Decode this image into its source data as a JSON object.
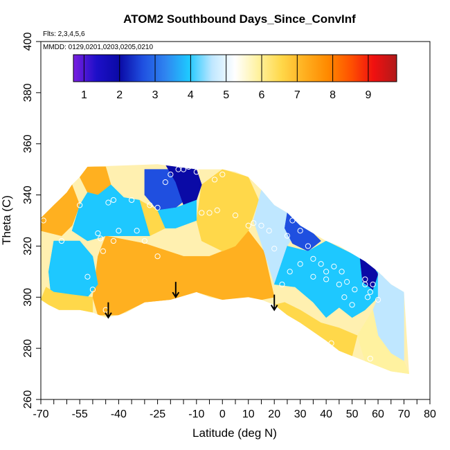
{
  "chart_data": {
    "type": "heatmap",
    "title": "ATOM2 Southbound Days_Since_ConvInf",
    "subtitle_flights": "Flts: 2,3,4,5,6",
    "subtitle_dates": "MMDD: 0129,0201,0203,0205,0210",
    "xlabel": "Latitude (deg N)",
    "ylabel": "Theta (C)",
    "xlim": [
      -70,
      80
    ],
    "ylim": [
      260,
      400
    ],
    "x_tick_labels": [
      "-70",
      "-55",
      "-40",
      "-25",
      "-10",
      "0",
      "10",
      "20",
      "30",
      "40",
      "50",
      "60",
      "70",
      "80"
    ],
    "x_tick_values": [
      -70,
      -55,
      -40,
      -25,
      -10,
      0,
      10,
      20,
      30,
      40,
      50,
      60,
      70,
      80
    ],
    "x_minor_ticks": [
      -65,
      -60,
      -50,
      -45,
      -35,
      -30,
      -20,
      -15,
      -5,
      5,
      15,
      25,
      35,
      45,
      55,
      65,
      75
    ],
    "y_tick_labels": [
      "260",
      "280",
      "300",
      "320",
      "340",
      "360",
      "380",
      "400"
    ],
    "y_tick_values": [
      260,
      280,
      300,
      320,
      340,
      360,
      380,
      400
    ],
    "colorbar": {
      "ticks": [
        "1",
        "2",
        "3",
        "4",
        "5",
        "6",
        "7",
        "8",
        "9"
      ],
      "tick_values": [
        1,
        2,
        3,
        4,
        5,
        6,
        7,
        8,
        9
      ],
      "range": [
        0.7,
        9.8
      ],
      "colors": [
        "#7a1fe0",
        "#1d0fc8",
        "#0a0aa6",
        "#1f4fe0",
        "#2f86f0",
        "#1ec8ff",
        "#bfe7ff",
        "#ffffff",
        "#fff2a0",
        "#ffd84a",
        "#ffb020",
        "#ff8a00",
        "#ff5200",
        "#f01010",
        "#b01a1a"
      ]
    },
    "envelope": {
      "top": [
        [
          -70,
          331
        ],
        [
          -67,
          334
        ],
        [
          -65,
          336
        ],
        [
          -62,
          339
        ],
        [
          -60,
          341
        ],
        [
          -58,
          344
        ],
        [
          -55,
          347
        ],
        [
          -52,
          351
        ],
        [
          -25,
          352
        ],
        [
          -10,
          350
        ],
        [
          0,
          350
        ],
        [
          5,
          349
        ],
        [
          10,
          347
        ],
        [
          15,
          342
        ],
        [
          20,
          336
        ],
        [
          25,
          333
        ],
        [
          30,
          328
        ],
        [
          35,
          325
        ],
        [
          40,
          322
        ],
        [
          45,
          320
        ],
        [
          50,
          317
        ],
        [
          55,
          314
        ],
        [
          60,
          310
        ],
        [
          65,
          305
        ],
        [
          70,
          302
        ]
      ],
      "bottom": [
        [
          72,
          270
        ],
        [
          65,
          271
        ],
        [
          60,
          273
        ],
        [
          55,
          275
        ],
        [
          50,
          277
        ],
        [
          45,
          279
        ],
        [
          40,
          283
        ],
        [
          30,
          290
        ],
        [
          25,
          293
        ],
        [
          20,
          297
        ],
        [
          15,
          299
        ],
        [
          10,
          300
        ],
        [
          0,
          299
        ],
        [
          -5,
          300
        ],
        [
          -10,
          302
        ],
        [
          -20,
          299
        ],
        [
          -30,
          298
        ],
        [
          -37,
          294
        ],
        [
          -40,
          293
        ],
        [
          -45,
          292
        ],
        [
          -50,
          294
        ],
        [
          -55,
          295
        ],
        [
          -63,
          295
        ],
        [
          -67,
          297
        ],
        [
          -70,
          299
        ]
      ]
    },
    "regions": [
      {
        "value": 7.2,
        "polygon": [
          [
            -45,
            324
          ],
          [
            -30,
            321
          ],
          [
            -15,
            316
          ],
          [
            -5,
            316
          ],
          [
            5,
            320
          ],
          [
            10,
            326
          ],
          [
            16,
            318
          ],
          [
            20,
            300
          ],
          [
            15,
            299
          ],
          [
            0,
            299
          ],
          [
            -10,
            302
          ],
          [
            -20,
            299
          ],
          [
            -30,
            298
          ],
          [
            -40,
            293
          ],
          [
            -48,
            293
          ],
          [
            -50,
            300
          ],
          [
            -48,
            316
          ]
        ]
      },
      {
        "value": 6.8,
        "polygon": [
          [
            -8,
            344
          ],
          [
            0,
            350
          ],
          [
            10,
            347
          ],
          [
            14,
            338
          ],
          [
            10,
            326
          ],
          [
            5,
            320
          ],
          [
            0,
            318
          ],
          [
            -8,
            322
          ],
          [
            -10,
            330
          ]
        ]
      },
      {
        "value": 6.9,
        "polygon": [
          [
            -55,
            347
          ],
          [
            -52,
            351
          ],
          [
            -45,
            351
          ],
          [
            -43,
            344
          ],
          [
            -48,
            340
          ],
          [
            -52,
            341
          ]
        ]
      },
      {
        "value": 7.3,
        "polygon": [
          [
            -70,
            331
          ],
          [
            -65,
            336
          ],
          [
            -60,
            341
          ],
          [
            -58,
            344
          ],
          [
            -55,
            336
          ],
          [
            -58,
            328
          ],
          [
            -62,
            324
          ],
          [
            -66,
            325
          ],
          [
            -70,
            326
          ]
        ]
      },
      {
        "value": 6.8,
        "polygon": [
          [
            -32,
            338
          ],
          [
            -25,
            334
          ],
          [
            -22,
            327
          ],
          [
            -28,
            324
          ],
          [
            -33,
            328
          ]
        ]
      },
      {
        "value": 3.8,
        "polygon": [
          [
            -43,
            344
          ],
          [
            -38,
            339
          ],
          [
            -32,
            338
          ],
          [
            -28,
            324
          ],
          [
            -45,
            324
          ],
          [
            -52,
            322
          ],
          [
            -58,
            326
          ],
          [
            -55,
            336
          ],
          [
            -52,
            341
          ],
          [
            -48,
            340
          ]
        ]
      },
      {
        "value": 2.6,
        "polygon": [
          [
            -30,
            350
          ],
          [
            -20,
            350
          ],
          [
            -15,
            348
          ],
          [
            -12,
            340
          ],
          [
            -18,
            335
          ],
          [
            -25,
            334
          ],
          [
            -30,
            340
          ]
        ]
      },
      {
        "value": 2.0,
        "polygon": [
          [
            -22,
            352
          ],
          [
            -10,
            350
          ],
          [
            -8,
            344
          ],
          [
            -10,
            338
          ],
          [
            -15,
            336
          ],
          [
            -18,
            345
          ]
        ]
      },
      {
        "value": 4.2,
        "polygon": [
          [
            -25,
            334
          ],
          [
            -18,
            335
          ],
          [
            -10,
            338
          ],
          [
            -10,
            330
          ],
          [
            -18,
            327
          ],
          [
            -22,
            327
          ]
        ]
      },
      {
        "value": 4.0,
        "polygon": [
          [
            -65,
            322
          ],
          [
            -55,
            322
          ],
          [
            -50,
            316
          ],
          [
            -48,
            305
          ],
          [
            -52,
            300
          ],
          [
            -60,
            298
          ],
          [
            -66,
            300
          ],
          [
            -67,
            310
          ]
        ]
      },
      {
        "value": 6.3,
        "polygon": [
          [
            -70,
            299
          ],
          [
            -67,
            297
          ],
          [
            -63,
            295
          ],
          [
            -55,
            295
          ],
          [
            -50,
            294
          ],
          [
            -50,
            300
          ],
          [
            -58,
            301
          ],
          [
            -65,
            302
          ],
          [
            -68,
            304
          ]
        ]
      },
      {
        "value": 4.5,
        "polygon": [
          [
            15,
            342
          ],
          [
            20,
            336
          ],
          [
            25,
            333
          ],
          [
            30,
            328
          ],
          [
            25,
            320
          ],
          [
            20,
            305
          ],
          [
            16,
            318
          ],
          [
            12,
            330
          ]
        ]
      },
      {
        "value": 2.5,
        "polygon": [
          [
            25,
            333
          ],
          [
            30,
            328
          ],
          [
            35,
            325
          ],
          [
            38,
            322
          ],
          [
            33,
            318
          ],
          [
            27,
            321
          ],
          [
            24,
            327
          ]
        ]
      },
      {
        "value": 3.8,
        "polygon": [
          [
            20,
            305
          ],
          [
            25,
            320
          ],
          [
            33,
            318
          ],
          [
            40,
            322
          ],
          [
            50,
            317
          ],
          [
            55,
            314
          ],
          [
            62,
            308
          ],
          [
            60,
            300
          ],
          [
            55,
            295
          ],
          [
            50,
            292
          ],
          [
            45,
            296
          ],
          [
            40,
            292
          ],
          [
            35,
            298
          ],
          [
            28,
            304
          ]
        ]
      },
      {
        "value": 2.3,
        "polygon": [
          [
            53,
            316
          ],
          [
            57,
            314
          ],
          [
            60,
            309
          ],
          [
            58,
            303
          ],
          [
            54,
            306
          ]
        ]
      },
      {
        "value": 4.6,
        "polygon": [
          [
            60,
            310
          ],
          [
            65,
            305
          ],
          [
            70,
            302
          ],
          [
            70,
            275
          ],
          [
            65,
            278
          ],
          [
            60,
            285
          ],
          [
            58,
            295
          ],
          [
            60,
            300
          ]
        ]
      },
      {
        "value": 5.6,
        "polygon": [
          [
            58,
            295
          ],
          [
            60,
            285
          ],
          [
            65,
            278
          ],
          [
            70,
            275
          ],
          [
            72,
            270
          ],
          [
            65,
            271
          ],
          [
            60,
            273
          ],
          [
            55,
            275
          ],
          [
            52,
            285
          ]
        ]
      },
      {
        "value": 6.6,
        "polygon": [
          [
            20,
            297
          ],
          [
            25,
            293
          ],
          [
            30,
            290
          ],
          [
            40,
            283
          ],
          [
            45,
            279
          ],
          [
            50,
            277
          ],
          [
            52,
            285
          ],
          [
            45,
            288
          ],
          [
            38,
            290
          ],
          [
            30,
            295
          ],
          [
            24,
            298
          ]
        ]
      }
    ],
    "points": [
      [
        -69,
        330
      ],
      [
        -62,
        322
      ],
      [
        -55,
        336
      ],
      [
        -52,
        308
      ],
      [
        -50,
        303
      ],
      [
        -48,
        325
      ],
      [
        -47,
        323
      ],
      [
        -46,
        318
      ],
      [
        -44,
        337
      ],
      [
        -42,
        338
      ],
      [
        -42,
        322
      ],
      [
        -40,
        326
      ],
      [
        -35,
        338
      ],
      [
        -33,
        326
      ],
      [
        -30,
        322
      ],
      [
        -28,
        336
      ],
      [
        -25,
        335
      ],
      [
        -22,
        345
      ],
      [
        -20,
        348
      ],
      [
        -17,
        350
      ],
      [
        -15,
        350
      ],
      [
        -13,
        351
      ],
      [
        -10,
        349
      ],
      [
        -8,
        333
      ],
      [
        -5,
        333
      ],
      [
        -3,
        346
      ],
      [
        0,
        348
      ],
      [
        -2,
        334
      ],
      [
        5,
        332
      ],
      [
        10,
        328
      ],
      [
        12,
        329
      ],
      [
        15,
        328
      ],
      [
        18,
        326
      ],
      [
        20,
        319
      ],
      [
        25,
        324
      ],
      [
        27,
        330
      ],
      [
        30,
        326
      ],
      [
        33,
        320
      ],
      [
        35,
        315
      ],
      [
        38,
        313
      ],
      [
        40,
        310
      ],
      [
        43,
        312
      ],
      [
        46,
        310
      ],
      [
        48,
        306
      ],
      [
        51,
        303
      ],
      [
        55,
        307
      ],
      [
        57,
        302
      ],
      [
        60,
        299
      ],
      [
        23,
        305
      ],
      [
        26,
        310
      ],
      [
        30,
        313
      ],
      [
        35,
        308
      ],
      [
        40,
        307
      ],
      [
        45,
        305
      ],
      [
        47,
        300
      ],
      [
        50,
        297
      ],
      [
        55,
        305
      ],
      [
        56,
        300
      ],
      [
        58,
        305
      ],
      [
        42,
        282
      ],
      [
        45,
        277
      ],
      [
        57,
        276
      ],
      [
        -35,
        292
      ],
      [
        -30,
        294
      ],
      [
        -45,
        295
      ],
      [
        14,
        298
      ],
      [
        -25,
        316
      ]
    ],
    "arrows": [
      [
        -44,
        298
      ],
      [
        -18,
        306
      ],
      [
        20,
        301
      ]
    ]
  }
}
